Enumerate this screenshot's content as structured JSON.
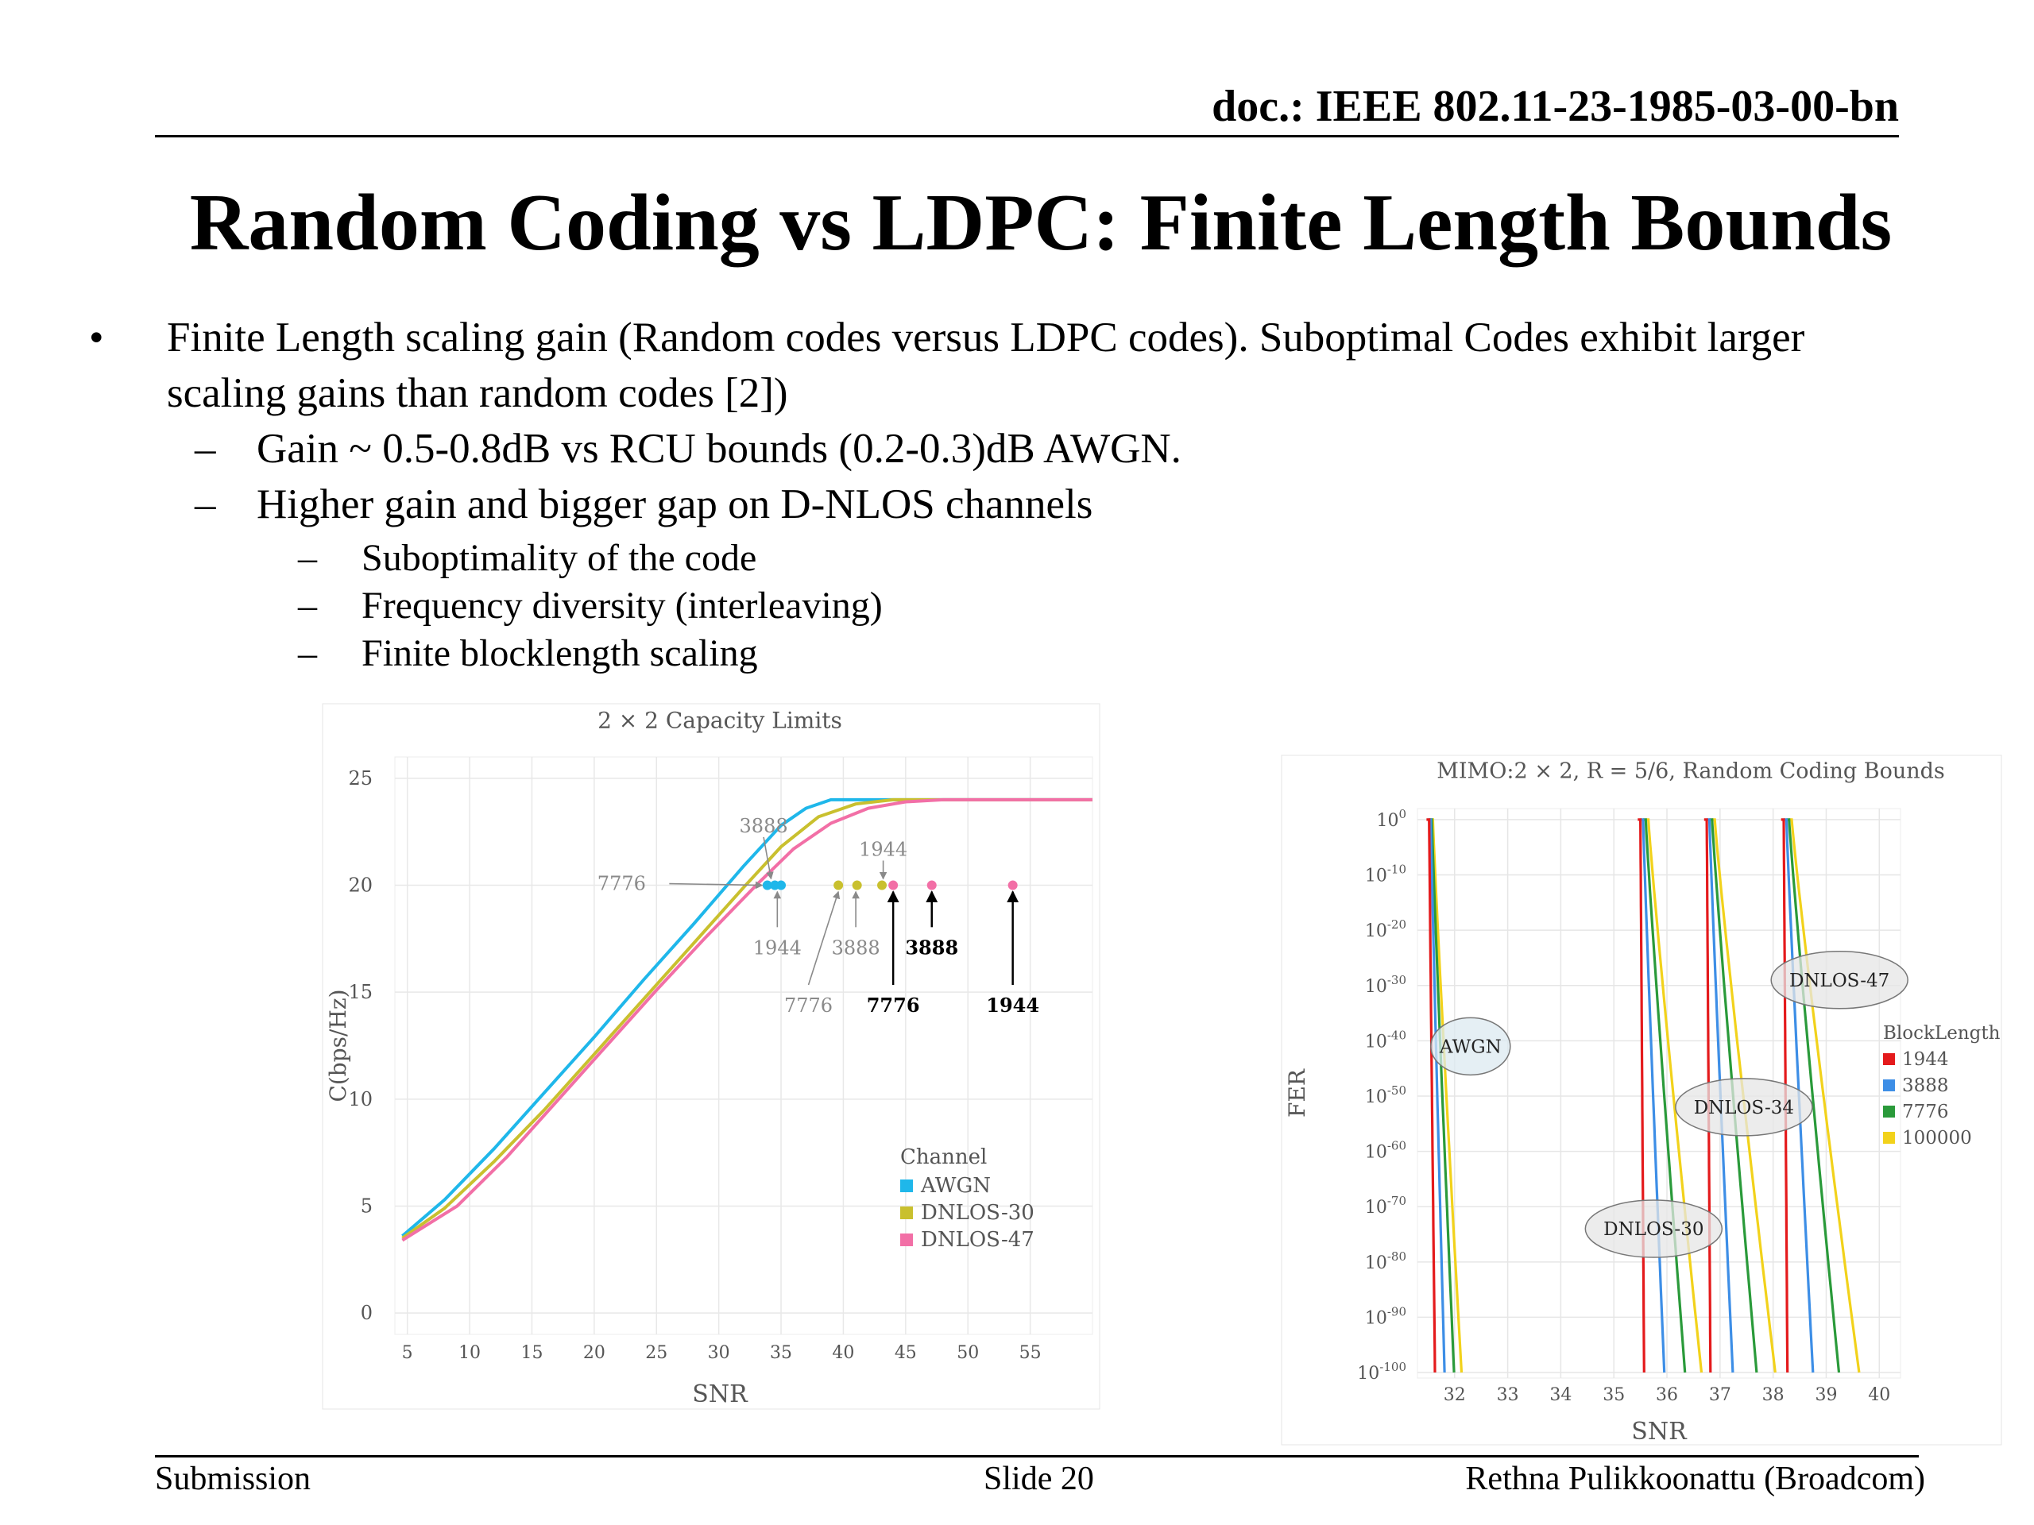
{
  "header": {
    "doc_id": "doc.: IEEE 802.11-23-1985-03-00-bn",
    "title": "Random Coding vs LDPC: Finite Length Bounds"
  },
  "bullets": {
    "b1_line1": "Finite Length scaling gain (Random codes versus LDPC codes). Suboptimal Codes exhibit larger",
    "b1_line2": "scaling gains than random codes [2])",
    "sub1": "Gain ~ 0.5-0.8dB vs RCU bounds (0.2-0.3)dB AWGN.",
    "sub2": "Higher gain and bigger gap on D-NLOS channels",
    "subsub1": "Suboptimality of the code",
    "subsub2": "Frequency diversity (interleaving)",
    "subsub3": "Finite blocklength scaling"
  },
  "chart_data": [
    {
      "type": "line",
      "title": "2 × 2 Capacity Limits",
      "xlabel": "SNR",
      "ylabel": "C(bps/Hz)",
      "xlim": [
        4,
        60
      ],
      "ylim": [
        -1,
        26
      ],
      "xticks": [
        5,
        10,
        15,
        20,
        25,
        30,
        35,
        40,
        45,
        50,
        55
      ],
      "yticks": [
        0,
        5,
        10,
        15,
        20,
        25
      ],
      "grid": true,
      "legend_title": "Channel",
      "legend_position": "lower-right",
      "series": [
        {
          "name": "AWGN",
          "color": "#1fb7ea",
          "x": [
            4.6,
            8,
            12,
            16,
            20,
            24,
            28,
            32,
            35,
            37,
            39,
            42,
            60
          ],
          "y": [
            3.6,
            5.3,
            7.7,
            10.3,
            12.9,
            15.6,
            18.2,
            20.9,
            22.8,
            23.6,
            24.0,
            24.0,
            24.0
          ]
        },
        {
          "name": "DNLOS-30",
          "color": "#c9c02e",
          "x": [
            4.6,
            8,
            12,
            16,
            20,
            24,
            28,
            32,
            35,
            38,
            41,
            44,
            46,
            60
          ],
          "y": [
            3.5,
            4.9,
            7.1,
            9.5,
            12.1,
            14.7,
            17.3,
            19.9,
            21.8,
            23.2,
            23.8,
            24.0,
            24.0,
            24.0
          ]
        },
        {
          "name": "DNLOS-47",
          "color": "#f26fa6",
          "x": [
            4.6,
            9,
            13,
            17,
            21,
            25,
            29,
            33,
            36,
            39,
            42,
            45,
            48,
            50,
            60
          ],
          "y": [
            3.4,
            5.0,
            7.3,
            9.9,
            12.5,
            15.1,
            17.6,
            20.0,
            21.7,
            22.9,
            23.6,
            23.9,
            24.0,
            24.0,
            24.0
          ]
        }
      ],
      "points": [
        {
          "x": 33.9,
          "y": 20,
          "color": "#1fb7ea"
        },
        {
          "x": 34.5,
          "y": 20,
          "color": "#1fb7ea"
        },
        {
          "x": 35.0,
          "y": 20,
          "color": "#1fb7ea"
        },
        {
          "x": 39.6,
          "y": 20,
          "color": "#c9c02e"
        },
        {
          "x": 41.1,
          "y": 20,
          "color": "#c9c02e"
        },
        {
          "x": 43.1,
          "y": 20,
          "color": "#c9c02e"
        },
        {
          "x": 44.0,
          "y": 20,
          "color": "#f26fa6"
        },
        {
          "x": 47.1,
          "y": 20,
          "color": "#f26fa6"
        },
        {
          "x": 53.6,
          "y": 20,
          "color": "#f26fa6"
        }
      ],
      "annotations": [
        {
          "text": "3888",
          "x": 33.6,
          "y": 22.7,
          "ax": 34.2,
          "ay": 20.3,
          "color": "#8a8a8a",
          "weight": "normal"
        },
        {
          "text": "1944",
          "x": 43.2,
          "y": 21.6,
          "ax": 43.2,
          "ay": 20.3,
          "color": "#8a8a8a",
          "weight": "normal"
        },
        {
          "text": "7776",
          "x": 22.2,
          "y": 20,
          "ax": 33.5,
          "ay": 20,
          "color": "#8a8a8a",
          "weight": "normal"
        },
        {
          "text": "1944",
          "x": 34.7,
          "y": 17.0,
          "ax": 34.7,
          "ay": 19.7,
          "color": "#8a8a8a",
          "weight": "normal"
        },
        {
          "text": "3888",
          "x": 41.0,
          "y": 17.0,
          "ax": 41.0,
          "ay": 19.7,
          "color": "#8a8a8a",
          "weight": "normal"
        },
        {
          "text": "7776",
          "x": 37.2,
          "y": 14.3,
          "ax": 39.6,
          "ay": 19.7,
          "color": "#8a8a8a",
          "weight": "normal"
        },
        {
          "text": "3888",
          "x": 47.1,
          "y": 17.0,
          "ax": 47.1,
          "ay": 19.7,
          "color": "#000000",
          "weight": "bold"
        },
        {
          "text": "7776",
          "x": 44.0,
          "y": 14.3,
          "ax": 44.0,
          "ay": 19.7,
          "color": "#000000",
          "weight": "bold"
        },
        {
          "text": "1944",
          "x": 53.6,
          "y": 14.3,
          "ax": 53.6,
          "ay": 19.7,
          "color": "#000000",
          "weight": "bold"
        }
      ]
    },
    {
      "type": "line",
      "title": "MIMO:2 × 2, R = 5/6, Random Coding Bounds",
      "xlabel": "SNR",
      "ylabel": "FER",
      "xlim": [
        31.3,
        40.4
      ],
      "ylim": [
        -101,
        2
      ],
      "y_scale": "log",
      "xticks": [
        32,
        33,
        34,
        35,
        36,
        37,
        38,
        39,
        40
      ],
      "ytick_exponents": [
        0,
        -10,
        -20,
        -30,
        -40,
        -50,
        -60,
        -70,
        -80,
        -90,
        -100
      ],
      "grid": true,
      "legend_title": "BlockLength",
      "legend_position": "right",
      "legend": [
        {
          "name": "1944",
          "color": "#e41a1c"
        },
        {
          "name": "3888",
          "color": "#3d8ee6"
        },
        {
          "name": "7776",
          "color": "#2a9a3a"
        },
        {
          "name": "100000",
          "color": "#f2d21b"
        }
      ],
      "curve_groups": [
        {
          "channel": "AWGN",
          "starts": [
            31.52,
            31.55,
            31.57,
            31.59
          ],
          "steeps": [
            0.09,
            0.24,
            0.4,
            0.52
          ]
        },
        {
          "channel": "DNLOS-30",
          "starts": [
            35.5,
            35.55,
            35.6,
            35.65
          ],
          "steeps": [
            0.05,
            0.38,
            0.72,
            0.98
          ]
        },
        {
          "channel": "DNLOS-34",
          "starts": [
            36.75,
            36.8,
            36.85,
            36.9
          ],
          "steeps": [
            0.05,
            0.42,
            0.82,
            1.12
          ]
        },
        {
          "channel": "DNLOS-47",
          "starts": [
            38.2,
            38.25,
            38.3,
            38.35
          ],
          "steeps": [
            0.05,
            0.48,
            0.92,
            1.25
          ]
        }
      ],
      "labels": [
        {
          "text": "AWGN",
          "x": 32.3,
          "exp": -41,
          "fill": "#dceaf0"
        },
        {
          "text": "DNLOS-47",
          "x": 39.25,
          "exp": -29,
          "fill": "#e6e6e6"
        },
        {
          "text": "DNLOS-34",
          "x": 37.45,
          "exp": -52,
          "fill": "#e6e6e6"
        },
        {
          "text": "DNLOS-30",
          "x": 35.75,
          "exp": -74,
          "fill": "#e6e6e6"
        }
      ]
    }
  ],
  "footer": {
    "left": "Submission",
    "center": "Slide 20",
    "right": "Rethna Pulikkoonattu (Broadcom)"
  }
}
